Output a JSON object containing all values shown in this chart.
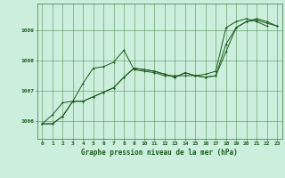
{
  "title": "Graphe pression niveau de la mer (hPa)",
  "background_color": "#cceedd",
  "grid_color": "#3d7a3d",
  "line_color": "#1a5c1a",
  "xlim": [
    -0.5,
    23.5
  ],
  "ylim": [
    1005.4,
    1009.9
  ],
  "xticks": [
    0,
    1,
    2,
    3,
    4,
    5,
    6,
    7,
    8,
    9,
    10,
    11,
    12,
    13,
    14,
    15,
    16,
    17,
    18,
    19,
    20,
    21,
    22,
    23
  ],
  "yticks": [
    1006,
    1007,
    1008,
    1009
  ],
  "series1_x": [
    0,
    1,
    2,
    3,
    4,
    5,
    6,
    7,
    8,
    9,
    10,
    11,
    12,
    13,
    14,
    15,
    16,
    17,
    18,
    19,
    20,
    21,
    22,
    23
  ],
  "series1_y": [
    1005.9,
    1005.9,
    1006.15,
    1006.65,
    1006.65,
    1006.8,
    1006.95,
    1007.1,
    1007.45,
    1007.75,
    1007.7,
    1007.65,
    1007.55,
    1007.45,
    1007.6,
    1007.5,
    1007.45,
    1007.5,
    1008.3,
    1009.1,
    1009.3,
    1009.35,
    1009.25,
    1009.15
  ],
  "series2_x": [
    0,
    1,
    2,
    3,
    4,
    5,
    6,
    7,
    8,
    9,
    10,
    11,
    12,
    13,
    14,
    15,
    16,
    17,
    18,
    19,
    20,
    21,
    22,
    23
  ],
  "series2_y": [
    1005.9,
    1005.9,
    1006.15,
    1006.65,
    1006.65,
    1006.8,
    1006.95,
    1007.1,
    1007.45,
    1007.75,
    1007.7,
    1007.65,
    1007.55,
    1007.45,
    1007.6,
    1007.5,
    1007.45,
    1007.5,
    1008.55,
    1009.1,
    1009.3,
    1009.4,
    1009.3,
    1009.15
  ],
  "series3_x": [
    0,
    1,
    2,
    3,
    4,
    5,
    6,
    7,
    8,
    9,
    10,
    11,
    12,
    13,
    14,
    15,
    16,
    17,
    18,
    19,
    20,
    21,
    22
  ],
  "series3_y": [
    1005.9,
    1006.2,
    1006.6,
    1006.65,
    1007.25,
    1007.75,
    1007.8,
    1007.95,
    1008.35,
    1007.7,
    1007.65,
    1007.6,
    1007.5,
    1007.5,
    1007.5,
    1007.5,
    1007.55,
    1007.65,
    1009.1,
    1009.3,
    1009.4,
    1009.3,
    1009.15
  ]
}
